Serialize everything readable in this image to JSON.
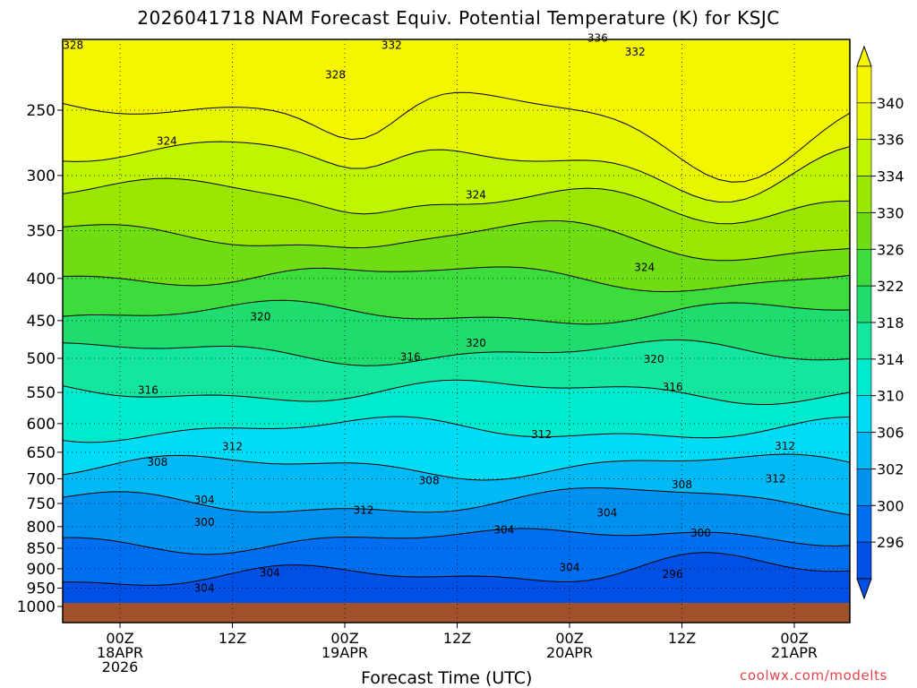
{
  "chart_data": {
    "type": "heatmap",
    "title": "2026041718 NAM Forecast Equiv. Potential Temperature (K) for KSJC",
    "xlabel": "Forecast Time (UTC)",
    "ylabel": "",
    "y_scale": "log-pressure",
    "y_inverted": true,
    "ylim": [
      1000,
      200
    ],
    "y_ticks": [
      "250",
      "300",
      "350",
      "400",
      "450",
      "500",
      "550",
      "600",
      "650",
      "700",
      "750",
      "800",
      "850",
      "900",
      "950",
      "1000"
    ],
    "x_ticks": [
      {
        "hour": "00Z",
        "date": "18APR",
        "year": "2026"
      },
      {
        "hour": "12Z",
        "date": "",
        "year": ""
      },
      {
        "hour": "00Z",
        "date": "19APR",
        "year": ""
      },
      {
        "hour": "12Z",
        "date": "",
        "year": ""
      },
      {
        "hour": "00Z",
        "date": "20APR",
        "year": ""
      },
      {
        "hour": "12Z",
        "date": "",
        "year": ""
      },
      {
        "hour": "00Z",
        "date": "21APR",
        "year": ""
      }
    ],
    "x_range_hours": [
      -6,
      78
    ],
    "grid": true,
    "colorbar": {
      "labels": [
        "340",
        "336",
        "334",
        "330",
        "326",
        "322",
        "318",
        "314",
        "310",
        "306",
        "302",
        "300",
        "296"
      ],
      "colors": [
        "#f5f500",
        "#e6f500",
        "#bff500",
        "#9be600",
        "#6fdc14",
        "#3cdc3c",
        "#1edc6e",
        "#14e6a0",
        "#00ebcd",
        "#00dcf5",
        "#00b9f5",
        "#0091f0",
        "#006ef0",
        "#0050e6"
      ]
    },
    "contour_labels": [
      {
        "value": "328",
        "hour": -5,
        "p": 208
      },
      {
        "value": "332",
        "hour": 29,
        "p": 208
      },
      {
        "value": "336",
        "hour": 51,
        "p": 204
      },
      {
        "value": "332",
        "hour": 55,
        "p": 212
      },
      {
        "value": "328",
        "hour": 23,
        "p": 226
      },
      {
        "value": "324",
        "hour": 5,
        "p": 272
      },
      {
        "value": "324",
        "hour": 38,
        "p": 316
      },
      {
        "value": "324",
        "hour": 56,
        "p": 387
      },
      {
        "value": "320",
        "hour": 15,
        "p": 444
      },
      {
        "value": "320",
        "hour": 38,
        "p": 478
      },
      {
        "value": "316",
        "hour": 31,
        "p": 497
      },
      {
        "value": "320",
        "hour": 57,
        "p": 500
      },
      {
        "value": "316",
        "hour": 3,
        "p": 545
      },
      {
        "value": "316",
        "hour": 59,
        "p": 540
      },
      {
        "value": "312",
        "hour": 45,
        "p": 617
      },
      {
        "value": "312",
        "hour": 12,
        "p": 638
      },
      {
        "value": "312",
        "hour": 71,
        "p": 637
      },
      {
        "value": "308",
        "hour": 4,
        "p": 667
      },
      {
        "value": "308",
        "hour": 33,
        "p": 702
      },
      {
        "value": "312",
        "hour": 70,
        "p": 698
      },
      {
        "value": "308",
        "hour": 60,
        "p": 710
      },
      {
        "value": "304",
        "hour": 9,
        "p": 741
      },
      {
        "value": "312",
        "hour": 26,
        "p": 762
      },
      {
        "value": "304",
        "hour": 52,
        "p": 768
      },
      {
        "value": "300",
        "hour": 9,
        "p": 788
      },
      {
        "value": "304",
        "hour": 41,
        "p": 805
      },
      {
        "value": "300",
        "hour": 62,
        "p": 812
      },
      {
        "value": "304",
        "hour": 16,
        "p": 908
      },
      {
        "value": "304",
        "hour": 48,
        "p": 895
      },
      {
        "value": "296",
        "hour": 59,
        "p": 912
      },
      {
        "value": "304",
        "hour": 9,
        "p": 948
      }
    ]
  },
  "credit": "coolwx.com/modelts"
}
